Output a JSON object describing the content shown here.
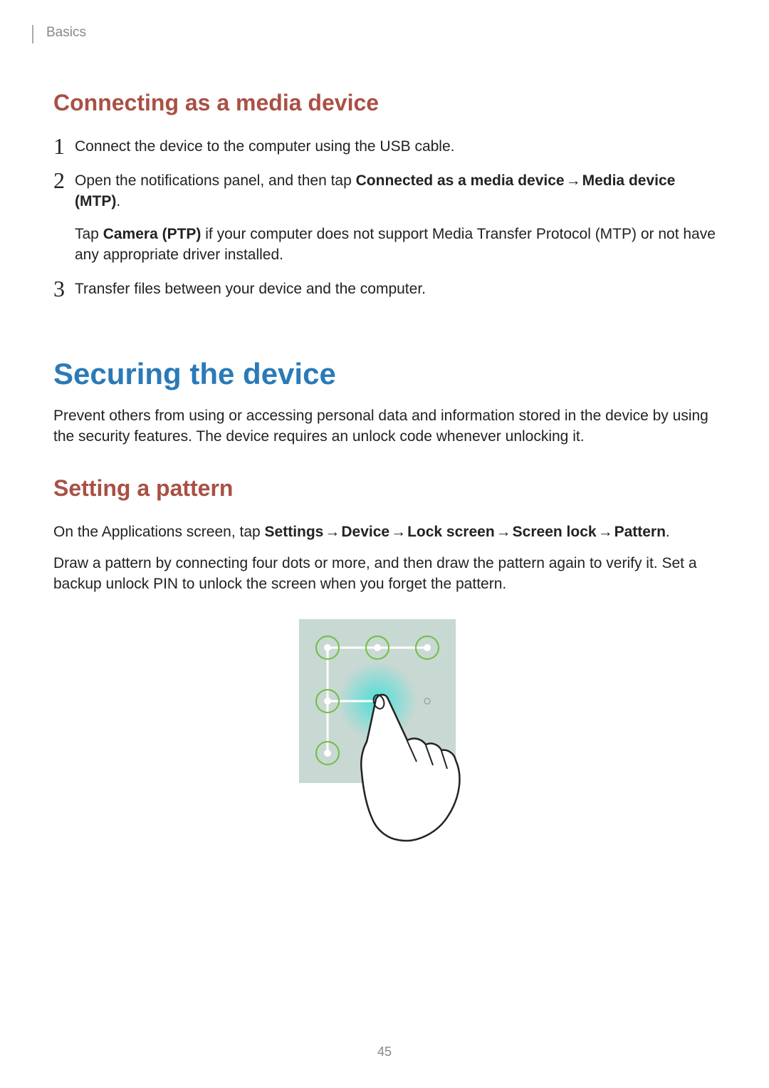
{
  "header": {
    "section_label": "Basics"
  },
  "section1": {
    "heading": "Connecting as a media device",
    "heading_color": "#a95045",
    "steps": [
      {
        "num": "1",
        "paragraphs": [
          {
            "runs": [
              {
                "t": "Connect the device to the computer using the USB cable."
              }
            ]
          }
        ]
      },
      {
        "num": "2",
        "paragraphs": [
          {
            "runs": [
              {
                "t": "Open the notifications panel, and then tap "
              },
              {
                "t": "Connected as a media device",
                "bold": true
              },
              {
                "t": " → ",
                "arrow": true
              },
              {
                "t": "Media device (MTP)",
                "bold": true
              },
              {
                "t": "."
              }
            ]
          },
          {
            "runs": [
              {
                "t": "Tap "
              },
              {
                "t": "Camera (PTP)",
                "bold": true
              },
              {
                "t": " if your computer does not support Media Transfer Protocol (MTP) or not have any appropriate driver installed."
              }
            ]
          }
        ]
      },
      {
        "num": "3",
        "paragraphs": [
          {
            "runs": [
              {
                "t": "Transfer files between your device and the computer."
              }
            ]
          }
        ]
      }
    ]
  },
  "section2": {
    "heading": "Securing the device",
    "heading_color": "#2a7ab8",
    "intro": "Prevent others from using or accessing personal data and information stored in the device by using the security features. The device requires an unlock code whenever unlocking it.",
    "sub": {
      "heading": "Setting a pattern",
      "heading_color": "#a95045",
      "para1": {
        "runs": [
          {
            "t": "On the Applications screen, tap "
          },
          {
            "t": "Settings",
            "bold": true
          },
          {
            "t": " → ",
            "arrow": true
          },
          {
            "t": "Device",
            "bold": true
          },
          {
            "t": " → ",
            "arrow": true
          },
          {
            "t": "Lock screen",
            "bold": true
          },
          {
            "t": " → ",
            "arrow": true
          },
          {
            "t": "Screen lock",
            "bold": true
          },
          {
            "t": " → ",
            "arrow": true
          },
          {
            "t": "Pattern",
            "bold": true
          },
          {
            "t": "."
          }
        ]
      },
      "para2": "Draw a pattern by connecting four dots or more, and then draw the pattern again to verify it. Set a backup unlock PIN to unlock the screen when you forget the pattern."
    }
  },
  "illustration": {
    "panel_bg": "#c8d8d3",
    "dot_stroke": "#6fbf3f",
    "touch_glow": "#3fe0d8",
    "hand_fill": "#ffffff",
    "hand_stroke": "#222222",
    "path_color": "#ffffff"
  },
  "page_number": "45"
}
